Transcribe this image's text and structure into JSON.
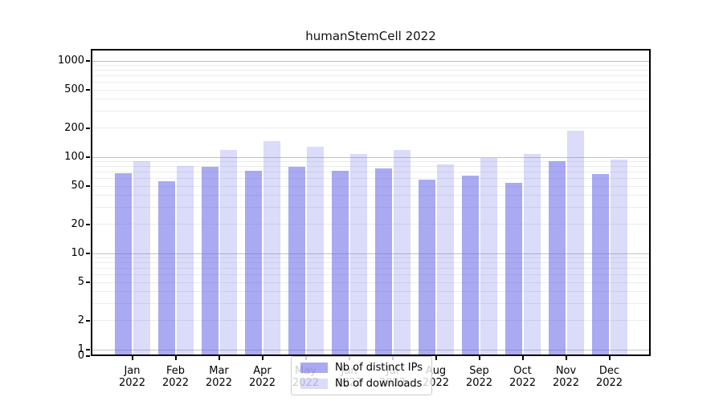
{
  "title": "humanStemCell 2022",
  "chart_data": {
    "type": "bar",
    "title": "humanStemCell 2022",
    "categories": [
      "Jan 2022",
      "Feb 2022",
      "Mar 2022",
      "Apr 2022",
      "May 2022",
      "Jun 2022",
      "Jul 2022",
      "Aug 2022",
      "Sep 2022",
      "Oct 2022",
      "Nov 2022",
      "Dec 2022"
    ],
    "series": [
      {
        "name": "Nb of distinct IPs",
        "color": "rgba(100,100,232,0.55)",
        "values": [
          68,
          56,
          79,
          72,
          80,
          72,
          77,
          58,
          64,
          54,
          90,
          67
        ]
      },
      {
        "name": "Nb of downloads",
        "color": "rgba(100,100,232,0.23)",
        "values": [
          90,
          81,
          119,
          148,
          128,
          109,
          118,
          84,
          98,
          107,
          187,
          94
        ]
      }
    ],
    "xlabel": "",
    "ylabel": "",
    "yscale": "symlog",
    "yticks": [
      0,
      1,
      2,
      5,
      10,
      20,
      50,
      100,
      200,
      500,
      1000
    ],
    "ylim": [
      0,
      1330
    ],
    "grid": "on",
    "legend_position": "lower center",
    "colors": {
      "axis": "#000000",
      "major_grid": "#c2c2c2",
      "minor_grid": "#ececec",
      "legend_border": "#cccccc"
    }
  }
}
